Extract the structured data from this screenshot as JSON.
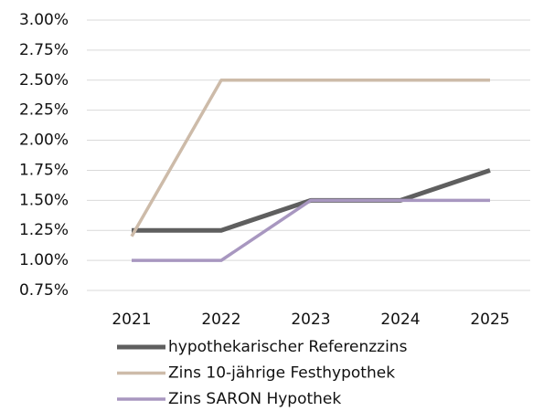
{
  "chart_data": {
    "type": "line",
    "categories": [
      "2021",
      "2022",
      "2023",
      "2024",
      "2025"
    ],
    "series": [
      {
        "name": "hypothekarischer Referenzzins",
        "color": "#5f5f5f",
        "values": [
          1.25,
          1.25,
          1.5,
          1.5,
          1.75
        ]
      },
      {
        "name": "Zins 10-jährige Festhypothek",
        "color": "#cdbba9",
        "values": [
          1.2,
          2.5,
          2.5,
          2.5,
          2.5
        ]
      },
      {
        "name": "Zins SARON Hypothek",
        "color": "#a897c0",
        "values": [
          1.0,
          1.0,
          1.5,
          1.5,
          1.5
        ]
      }
    ],
    "ylim": [
      0.75,
      3.0
    ],
    "yticks": [
      {
        "value": 0.75,
        "label": "0.75%"
      },
      {
        "value": 1.0,
        "label": "1.00%"
      },
      {
        "value": 1.25,
        "label": "1.25%"
      },
      {
        "value": 1.5,
        "label": "1.50%"
      },
      {
        "value": 1.75,
        "label": "1.75%"
      },
      {
        "value": 2.0,
        "label": "2.00%"
      },
      {
        "value": 2.25,
        "label": "2.25%"
      },
      {
        "value": 2.5,
        "label": "2.50%"
      },
      {
        "value": 2.75,
        "label": "2.75%"
      },
      {
        "value": 3.0,
        "label": "3.00%"
      }
    ],
    "grid": true
  }
}
